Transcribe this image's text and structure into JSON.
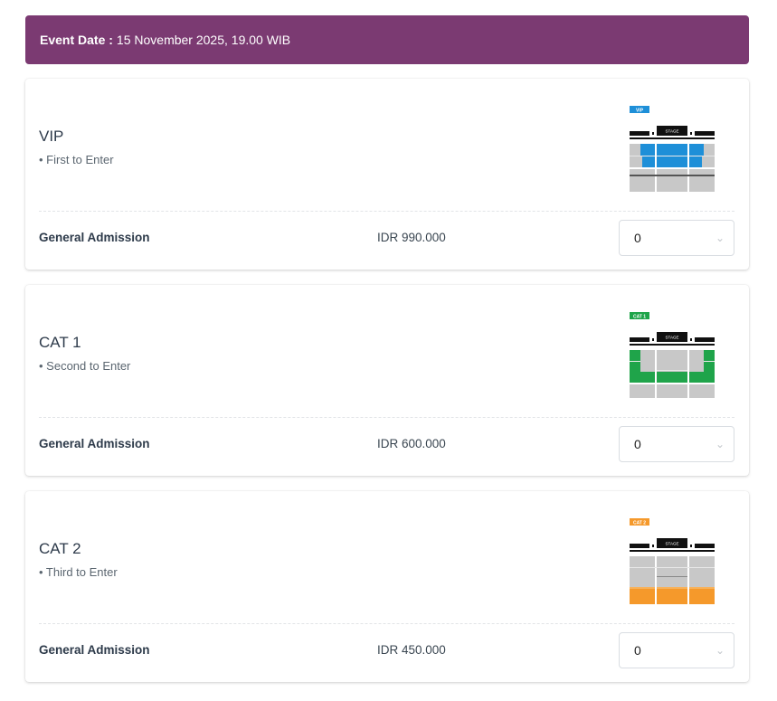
{
  "event": {
    "label": "Event Date :",
    "value": "15 November 2025, 19.00 WIB"
  },
  "stage_label": "STAGE",
  "tickets": [
    {
      "title": "VIP",
      "desc": "• First to Enter",
      "badge": "VIP",
      "color": "#1e8fd8",
      "admission": "General Admission",
      "price": "IDR 990.000",
      "quantity": "0"
    },
    {
      "title": "CAT 1",
      "desc": "• Second to Enter",
      "badge": "CAT 1",
      "color": "#1fa44a",
      "admission": "General Admission",
      "price": "IDR 600.000",
      "quantity": "0"
    },
    {
      "title": "CAT 2",
      "desc": "• Third to Enter",
      "badge": "CAT 2",
      "color": "#f5992b",
      "admission": "General Admission",
      "price": "IDR 450.000",
      "quantity": "0"
    }
  ]
}
